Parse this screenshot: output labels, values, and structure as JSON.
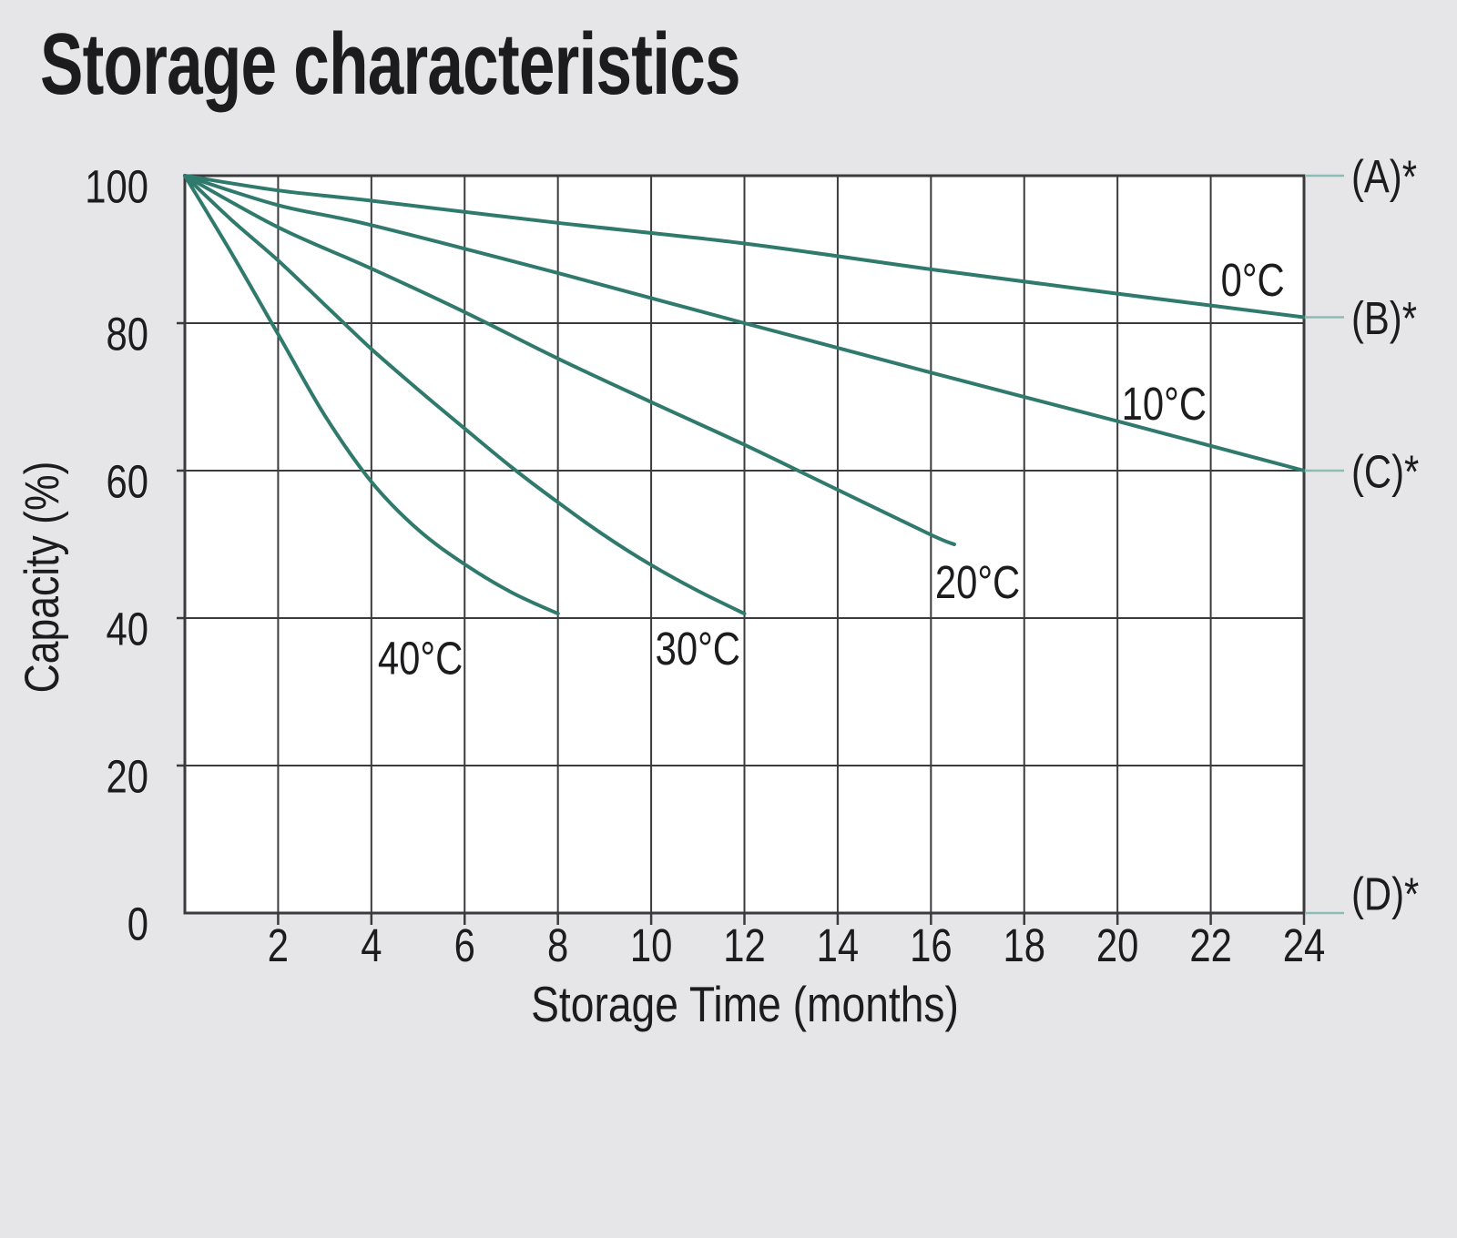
{
  "title": "Storage characteristics",
  "chart_data": {
    "type": "line",
    "title": "Storage characteristics",
    "xlabel": "Storage Time (months)",
    "ylabel": "Capacity (%)",
    "xlim": [
      0,
      24
    ],
    "ylim": [
      0,
      100
    ],
    "x_ticks": [
      2,
      4,
      6,
      8,
      10,
      12,
      14,
      16,
      18,
      20,
      22,
      24
    ],
    "y_ticks": [
      0,
      20,
      40,
      60,
      80,
      100
    ],
    "grid": true,
    "legend_position": "inline-labels",
    "series": [
      {
        "id": "0c",
        "name": "0°C",
        "label_at": [
          22.9,
          86
        ],
        "points": [
          [
            0,
            100
          ],
          [
            2,
            98
          ],
          [
            4,
            96.6
          ],
          [
            8,
            93.6
          ],
          [
            12,
            90.8
          ],
          [
            16,
            87.3
          ],
          [
            20,
            84
          ],
          [
            24,
            80.8
          ]
        ]
      },
      {
        "id": "10c",
        "name": "10°C",
        "label_at": [
          21.0,
          69.2
        ],
        "points": [
          [
            0,
            100
          ],
          [
            2,
            96
          ],
          [
            4,
            93.3
          ],
          [
            8,
            86.8
          ],
          [
            12,
            80
          ],
          [
            16,
            73.3
          ],
          [
            20,
            66.7
          ],
          [
            24,
            60
          ]
        ]
      },
      {
        "id": "20c",
        "name": "20°C",
        "label_at": [
          17.0,
          45
        ],
        "points": [
          [
            0,
            100
          ],
          [
            2,
            93
          ],
          [
            4,
            87.4
          ],
          [
            6,
            81.5
          ],
          [
            8,
            75.2
          ],
          [
            10,
            69.3
          ],
          [
            12,
            63.5
          ],
          [
            14,
            57.4
          ],
          [
            16,
            51.3
          ],
          [
            16.5,
            50
          ]
        ]
      },
      {
        "id": "30c",
        "name": "30°C",
        "label_at": [
          11.0,
          36
        ],
        "points": [
          [
            0,
            100
          ],
          [
            1,
            94
          ],
          [
            2,
            88.5
          ],
          [
            3,
            82.5
          ],
          [
            4,
            76.5
          ],
          [
            5,
            71
          ],
          [
            6,
            65.7
          ],
          [
            7,
            60.5
          ],
          [
            8,
            55.7
          ],
          [
            9,
            51.2
          ],
          [
            10,
            47.2
          ],
          [
            11,
            43.7
          ],
          [
            12,
            40.6
          ]
        ]
      },
      {
        "id": "40c",
        "name": "40°C",
        "label_at": [
          5.05,
          34.7
        ],
        "points": [
          [
            0,
            100
          ],
          [
            1,
            89.5
          ],
          [
            2,
            78.5
          ],
          [
            3,
            67.5
          ],
          [
            4,
            58.5
          ],
          [
            5,
            52
          ],
          [
            6,
            47.3
          ],
          [
            7,
            43.5
          ],
          [
            8,
            40.6
          ]
        ]
      }
    ],
    "annotations": [
      {
        "id": "a",
        "label": "(A)*",
        "y": 100
      },
      {
        "id": "b",
        "label": "(B)*",
        "y": 80.8
      },
      {
        "id": "c",
        "label": "(C)*",
        "y": 60
      },
      {
        "id": "d",
        "label": "(D)*",
        "y": 0
      }
    ]
  },
  "colors": {
    "background": "#e6e6e8",
    "plot_bg": "#ffffff",
    "grid": "#3b3b3d",
    "series": "#2f7a6d",
    "callout": "#8cbcb3",
    "text": "#1c1c1e"
  }
}
